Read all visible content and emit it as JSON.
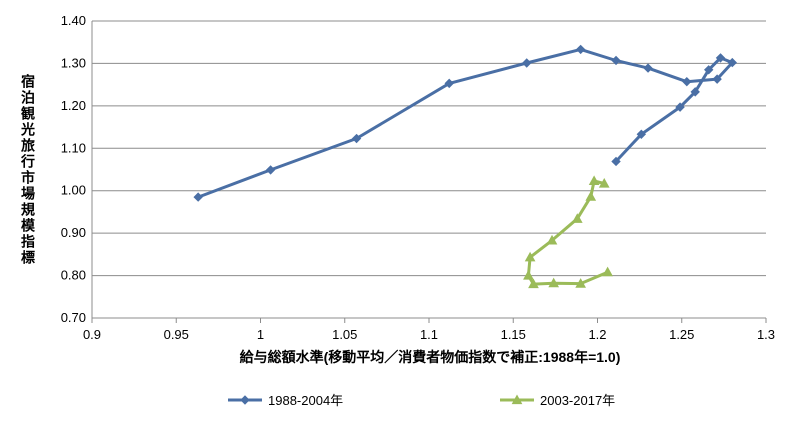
{
  "chart_data": {
    "type": "line",
    "title": "",
    "xlabel": "給与総額水準(移動平均／消費者物価指数で補正:1988年=1.0)",
    "ylabel": "宿泊観光旅行市場規模指標",
    "xlim": [
      0.9,
      1.3
    ],
    "ylim": [
      0.7,
      1.4
    ],
    "x_ticks": [
      "0.9",
      "0.95",
      "1",
      "1.05",
      "1.1",
      "1.15",
      "1.2",
      "1.25",
      "1.3"
    ],
    "y_ticks": [
      "0.70",
      "0.80",
      "0.90",
      "1.00",
      "1.10",
      "1.20",
      "1.30",
      "1.40"
    ],
    "grid": "horizontal",
    "legend_position": "bottom",
    "series": [
      {
        "name": "1988-2004年",
        "color": "#4a6fa5",
        "marker": "diamond",
        "points": [
          [
            0.963,
            0.985
          ],
          [
            1.006,
            1.049
          ],
          [
            1.057,
            1.123
          ],
          [
            1.112,
            1.253
          ],
          [
            1.158,
            1.301
          ],
          [
            1.19,
            1.333
          ],
          [
            1.211,
            1.307
          ],
          [
            1.23,
            1.289
          ],
          [
            1.253,
            1.257
          ],
          [
            1.271,
            1.263
          ],
          [
            1.28,
            1.302
          ],
          [
            1.273,
            1.313
          ],
          [
            1.266,
            1.285
          ],
          [
            1.258,
            1.233
          ],
          [
            1.249,
            1.197
          ],
          [
            1.226,
            1.133
          ],
          [
            1.211,
            1.069
          ]
        ]
      },
      {
        "name": "2003-2017年",
        "color": "#9bbb59",
        "marker": "triangle",
        "points": [
          [
            1.206,
            0.808
          ],
          [
            1.19,
            0.781
          ],
          [
            1.174,
            0.782
          ],
          [
            1.162,
            0.78
          ],
          [
            1.159,
            0.8
          ],
          [
            1.16,
            0.843
          ],
          [
            1.173,
            0.883
          ],
          [
            1.188,
            0.934
          ],
          [
            1.196,
            0.986
          ],
          [
            1.198,
            1.023
          ],
          [
            1.204,
            1.017
          ]
        ]
      }
    ]
  }
}
